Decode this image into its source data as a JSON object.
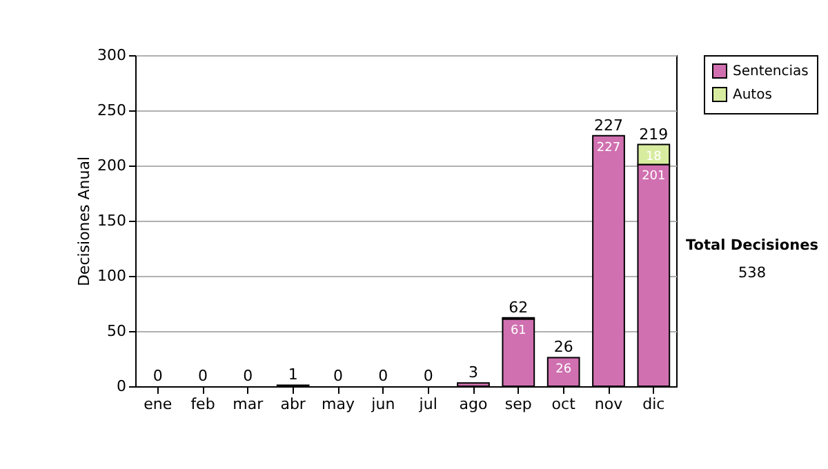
{
  "chart_data": {
    "type": "bar",
    "stacked": true,
    "ylabel": "Decisiones Anual",
    "categories": [
      "ene",
      "feb",
      "mar",
      "abr",
      "may",
      "jun",
      "jul",
      "ago",
      "sep",
      "oct",
      "nov",
      "dic"
    ],
    "series": [
      {
        "name": "Sentencias",
        "color": "#d070b0",
        "values": [
          0,
          0,
          0,
          1,
          0,
          0,
          0,
          3,
          61,
          26,
          227,
          201
        ],
        "value_labels": [
          null,
          null,
          null,
          null,
          null,
          null,
          null,
          null,
          "61",
          "26",
          "227",
          "201"
        ]
      },
      {
        "name": "Autos",
        "color": "#d8eca0",
        "values": [
          0,
          0,
          0,
          0,
          0,
          0,
          0,
          0,
          1,
          0,
          0,
          18
        ],
        "value_labels": [
          null,
          null,
          null,
          null,
          null,
          null,
          null,
          null,
          null,
          null,
          null,
          "18"
        ]
      }
    ],
    "totals": [
      "0",
      "0",
      "0",
      "1",
      "0",
      "0",
      "0",
      "3",
      "62",
      "26",
      "227",
      "219"
    ],
    "ylim": [
      0,
      300
    ],
    "yticks": [
      0,
      50,
      100,
      150,
      200,
      250,
      300
    ],
    "grid": "y",
    "legend": "right",
    "annotations": [
      "Total Decisiones",
      "538"
    ]
  }
}
